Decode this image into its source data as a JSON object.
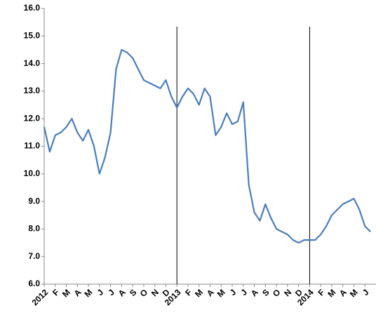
{
  "chart_data": {
    "type": "line",
    "categories": [
      "2012",
      null,
      "F",
      null,
      "M",
      null,
      "A",
      null,
      "M",
      null,
      "J",
      null,
      "J",
      null,
      "A",
      null,
      "S",
      null,
      "O",
      null,
      "N",
      null,
      "D",
      null,
      "2013",
      null,
      "F",
      null,
      "M",
      null,
      "A",
      null,
      "M",
      null,
      "J",
      null,
      "J",
      null,
      "A",
      null,
      "S",
      null,
      "O",
      null,
      "N",
      null,
      "D",
      null,
      "2014",
      null,
      "F",
      null,
      "M",
      null,
      "A",
      null,
      "M",
      null,
      "J",
      null
    ],
    "series": [
      {
        "color": "#4a7ebb",
        "values": [
          11.7,
          10.8,
          11.4,
          11.5,
          11.7,
          12.0,
          11.5,
          11.2,
          11.6,
          11.0,
          10.0,
          10.6,
          11.5,
          13.8,
          14.5,
          14.4,
          14.2,
          13.8,
          13.4,
          13.3,
          13.2,
          13.1,
          13.4,
          12.8,
          12.4,
          12.8,
          13.1,
          12.9,
          12.5,
          13.1,
          12.8,
          11.4,
          11.7,
          12.2,
          11.8,
          11.9,
          12.6,
          9.6,
          8.6,
          8.3,
          8.9,
          8.4,
          8.0,
          7.9,
          7.8,
          7.6,
          7.5,
          7.6,
          7.6,
          7.6,
          7.8,
          8.1,
          8.5,
          8.7,
          8.9,
          9.0,
          9.1,
          8.7,
          8.1,
          7.9
        ]
      }
    ],
    "ylim": [
      6,
      16
    ],
    "yticks": [
      {
        "value": 6,
        "label": "6.0"
      },
      {
        "value": 7,
        "label": "7.0"
      },
      {
        "value": 8,
        "label": "8.0"
      },
      {
        "value": 9,
        "label": "9.0"
      },
      {
        "value": 10,
        "label": "10.0"
      },
      {
        "value": 11,
        "label": "11.0"
      },
      {
        "value": 12,
        "label": "12.0"
      },
      {
        "value": 13,
        "label": "13.0"
      },
      {
        "value": 14,
        "label": "14.0"
      },
      {
        "value": 15,
        "label": "15.0"
      },
      {
        "value": 16,
        "label": "16.0"
      }
    ],
    "grid": false
  }
}
